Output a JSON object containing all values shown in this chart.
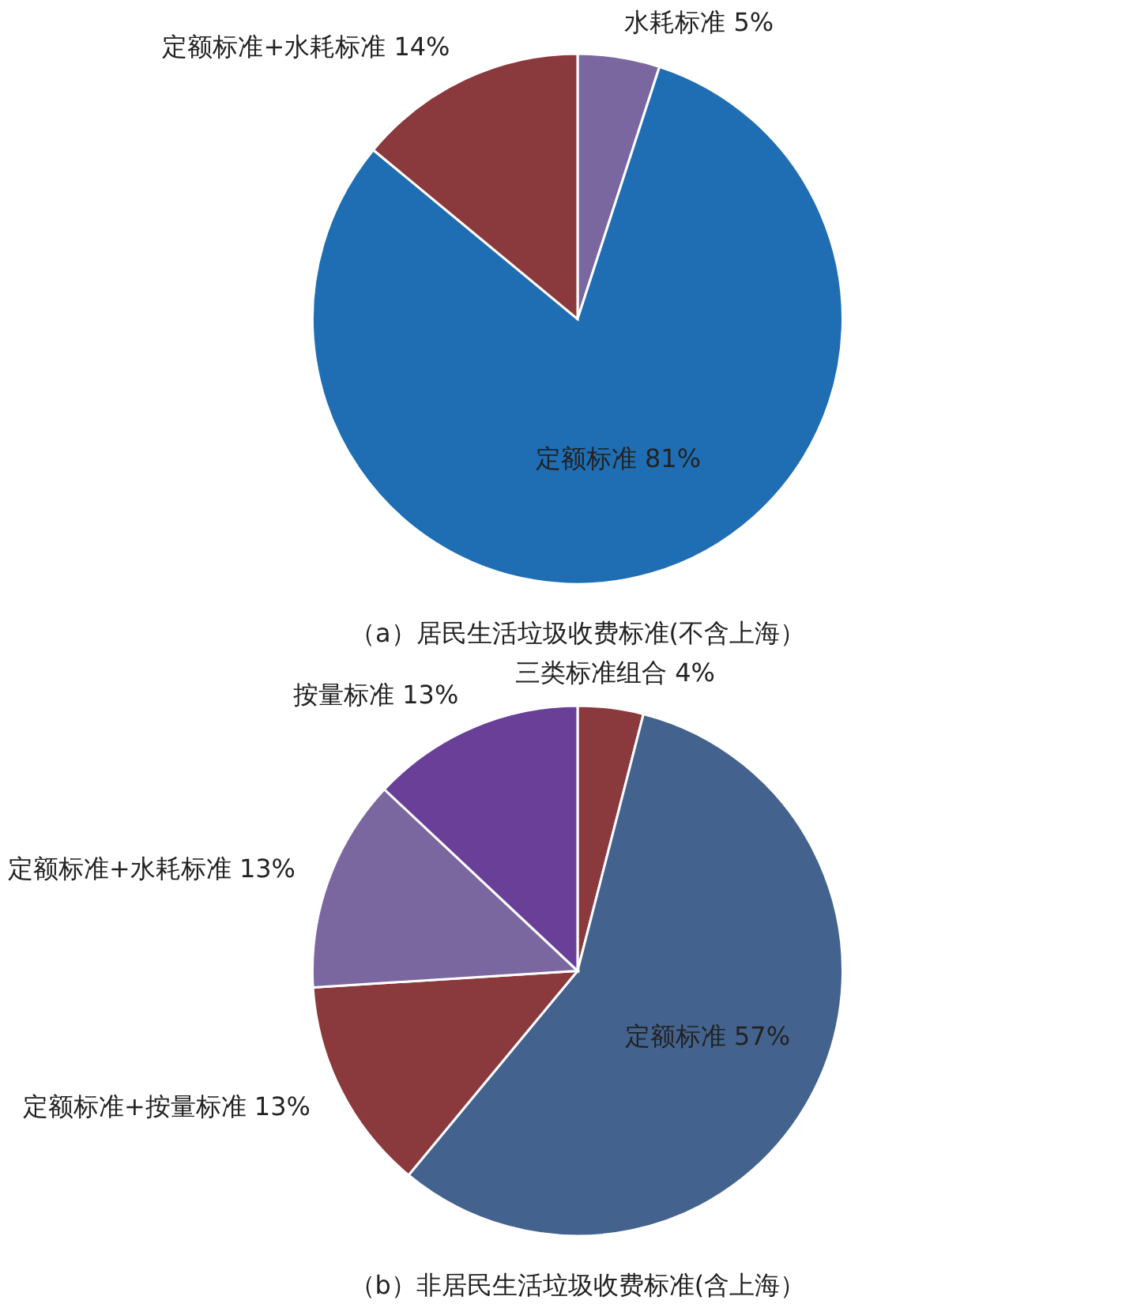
{
  "chart_data": [
    {
      "type": "pie",
      "title": "（a）居民生活垃圾收费标准(不含上海）",
      "categories": [
        "水耗标准",
        "定额标准",
        "定额标准+水耗标准"
      ],
      "values": [
        5,
        81,
        14
      ],
      "value_labels": [
        "5%",
        "81%",
        "14%"
      ],
      "colors": [
        "#7b67a0",
        "#1f6eb3",
        "#8a393d"
      ],
      "legend": false
    },
    {
      "type": "pie",
      "title": "（b）非居民生活垃圾收费标准(含上海）",
      "categories": [
        "三类标准组合",
        "定额标准",
        "定额标准+按量标准",
        "定额标准+水耗标准",
        "按量标准"
      ],
      "values": [
        4,
        57,
        13,
        13,
        13
      ],
      "value_labels": [
        "4%",
        "57%",
        "13%",
        "13%",
        "13%"
      ],
      "colors": [
        "#8a393d",
        "#43638e",
        "#8a393d",
        "#7b67a0",
        "#693f98"
      ],
      "legend": false
    }
  ]
}
